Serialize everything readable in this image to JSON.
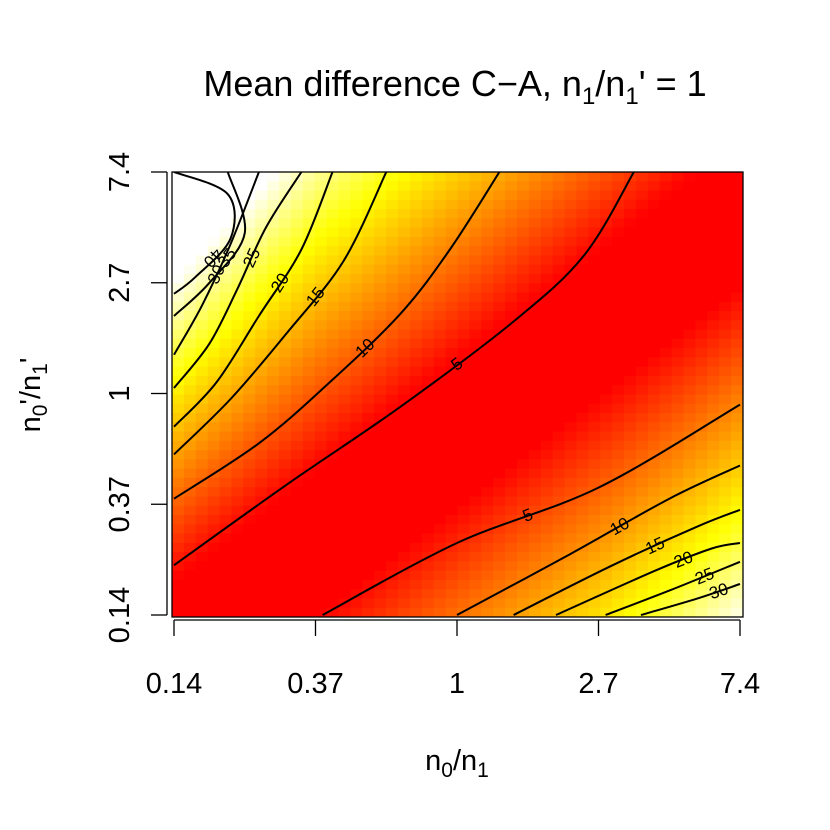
{
  "chart_data": {
    "type": "heatmap",
    "title": {
      "prefix": "Mean difference C−A, n",
      "sub1": "1",
      "mid": "/n",
      "sub2": "1",
      "suffix": "' = 1"
    },
    "xlabel": {
      "base": "n",
      "sub": "0",
      "rest": "/n",
      "sub2": "1"
    },
    "ylabel": {
      "base": "n",
      "sub": "0",
      "rest": "'/n",
      "sub2": "1",
      "end": "'"
    },
    "x_ticks": [
      "0.14",
      "0.37",
      "1",
      "2.7",
      "7.4"
    ],
    "y_ticks": [
      "0.14",
      "0.37",
      "1",
      "2.7",
      "7.4"
    ],
    "x_range_log": [
      -2,
      2
    ],
    "y_range_log": [
      -2,
      2
    ],
    "color_scale": [
      "#ff0000",
      "#ff8000",
      "#ffff00",
      "#ffffff"
    ],
    "value_range": [
      0,
      42
    ],
    "contours": {
      "upper_left": [
        {
          "label": "5",
          "points": [
            [
              -2,
              -1.55
            ],
            [
              -1.2,
              -0.82
            ],
            [
              -0.4,
              -0.12
            ],
            [
              0.4,
              0.65
            ],
            [
              0.9,
              1.25
            ],
            [
              1.25,
              2
            ]
          ]
        },
        {
          "label": "10",
          "points": [
            [
              -2,
              -0.95
            ],
            [
              -1.4,
              -0.45
            ],
            [
              -0.9,
              0.1
            ],
            [
              -0.4,
              0.72
            ],
            [
              -0.05,
              1.3
            ],
            [
              0.3,
              2
            ]
          ]
        },
        {
          "label": "15",
          "points": [
            [
              -2,
              -0.55
            ],
            [
              -1.6,
              -0.05
            ],
            [
              -1.2,
              0.55
            ],
            [
              -0.8,
              1.2
            ],
            [
              -0.5,
              2
            ]
          ]
        },
        {
          "label": "20",
          "points": [
            [
              -2,
              -0.3
            ],
            [
              -1.7,
              0.1
            ],
            [
              -1.4,
              0.7
            ],
            [
              -1.1,
              1.3
            ],
            [
              -0.88,
              2
            ]
          ]
        },
        {
          "label": "25",
          "points": [
            [
              -2,
              0.05
            ],
            [
              -1.75,
              0.45
            ],
            [
              -1.55,
              0.95
            ],
            [
              -1.35,
              1.5
            ],
            [
              -1.1,
              2
            ]
          ]
        },
        {
          "label": "30",
          "points": [
            [
              -2,
              0.35
            ],
            [
              -1.8,
              0.8
            ],
            [
              -1.6,
              1.35
            ],
            [
              -1.4,
              2
            ]
          ]
        },
        {
          "label": "35",
          "points": [
            [
              -2,
              0.7
            ],
            [
              -1.75,
              1.0
            ],
            [
              -1.5,
              1.45
            ],
            [
              -1.62,
              2
            ]
          ]
        },
        {
          "label": "40",
          "points": [
            [
              -2,
              2
            ],
            [
              -1.62,
              1.8
            ],
            [
              -1.6,
              1.4
            ],
            [
              -1.85,
              1.05
            ],
            [
              -2,
              0.9
            ]
          ]
        }
      ],
      "lower_right": [
        {
          "label": "5",
          "points": [
            [
              -0.95,
              -2
            ],
            [
              0,
              -1.35
            ],
            [
              1,
              -0.85
            ],
            [
              2,
              -0.1
            ]
          ]
        },
        {
          "label": "10",
          "points": [
            [
              0,
              -2
            ],
            [
              0.8,
              -1.45
            ],
            [
              1.5,
              -0.95
            ],
            [
              2,
              -0.65
            ]
          ]
        },
        {
          "label": "15",
          "points": [
            [
              0.4,
              -2
            ],
            [
              1.1,
              -1.55
            ],
            [
              1.7,
              -1.2
            ],
            [
              2,
              -1.05
            ]
          ]
        },
        {
          "label": "20",
          "points": [
            [
              0.7,
              -2
            ],
            [
              1.4,
              -1.6
            ],
            [
              1.8,
              -1.4
            ],
            [
              2,
              -1.35
            ]
          ]
        },
        {
          "label": "25",
          "points": [
            [
              1.05,
              -2
            ],
            [
              1.5,
              -1.78
            ],
            [
              2,
              -1.52
            ]
          ]
        },
        {
          "label": "30",
          "points": [
            [
              1.3,
              -2
            ],
            [
              1.7,
              -1.85
            ],
            [
              2,
              -1.72
            ]
          ]
        }
      ]
    }
  }
}
